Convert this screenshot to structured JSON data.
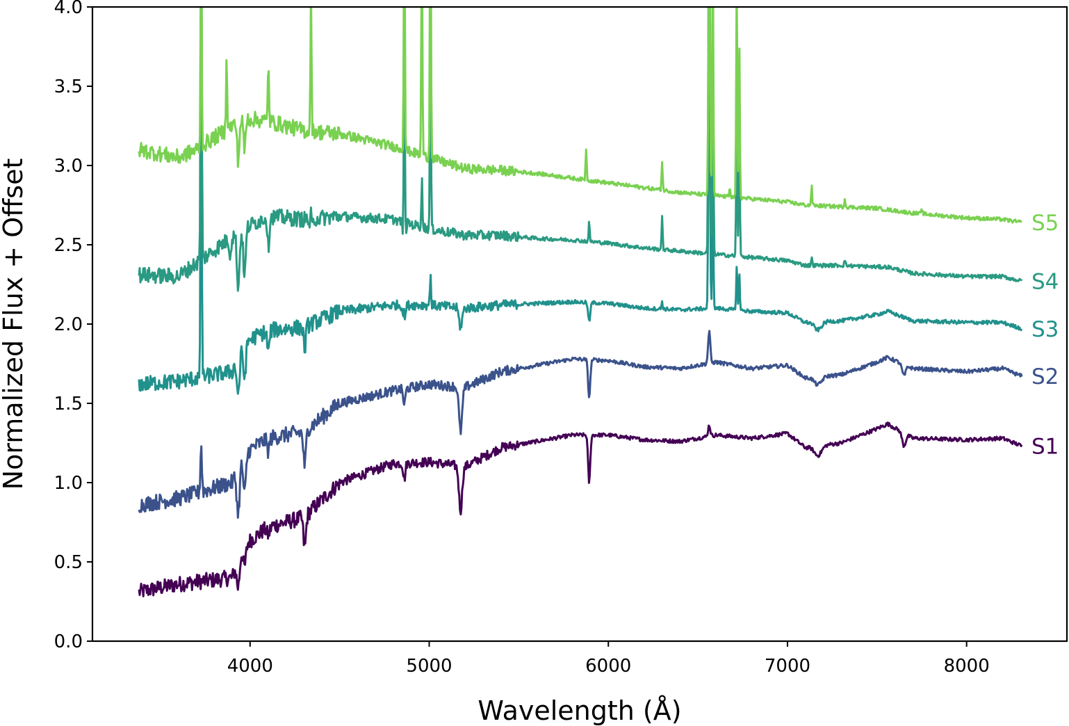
{
  "chart_data": {
    "type": "line",
    "title": "",
    "xlabel": "Wavelength (Å)",
    "ylabel": "Normalized Flux + Offset",
    "xlim": [
      3120,
      8560
    ],
    "ylim": [
      0.0,
      4.0
    ],
    "xticks": [
      4000,
      5000,
      6000,
      7000,
      8000
    ],
    "yticks": [
      0.0,
      0.5,
      1.0,
      1.5,
      2.0,
      2.5,
      3.0,
      3.5,
      4.0
    ],
    "xtick_labels": [
      "4000",
      "5000",
      "6000",
      "7000",
      "8000"
    ],
    "ytick_labels": [
      "0.0",
      "0.5",
      "1.0",
      "1.5",
      "2.0",
      "2.5",
      "3.0",
      "3.5",
      "4.0"
    ],
    "grid": false,
    "legend": "inline labels at right end of each series",
    "series": [
      {
        "name": "S1",
        "label": "S1",
        "color": "#440154",
        "continuum": [
          [
            3380,
            0.31
          ],
          [
            3600,
            0.36
          ],
          [
            3900,
            0.4
          ],
          [
            3960,
            0.6
          ],
          [
            4100,
            0.72
          ],
          [
            4300,
            0.78
          ],
          [
            4500,
            1.0
          ],
          [
            4800,
            1.12
          ],
          [
            5000,
            1.13
          ],
          [
            5200,
            1.1
          ],
          [
            5400,
            1.22
          ],
          [
            5600,
            1.26
          ],
          [
            5800,
            1.3
          ],
          [
            6000,
            1.3
          ],
          [
            6200,
            1.27
          ],
          [
            6400,
            1.26
          ],
          [
            6600,
            1.3
          ],
          [
            6800,
            1.28
          ],
          [
            7000,
            1.31
          ],
          [
            7100,
            1.22
          ],
          [
            7300,
            1.25
          ],
          [
            7500,
            1.34
          ],
          [
            7560,
            1.37
          ],
          [
            7700,
            1.28
          ],
          [
            8000,
            1.27
          ],
          [
            8200,
            1.28
          ],
          [
            8310,
            1.23
          ]
        ],
        "features": [
          [
            3934,
            -0.17,
            8
          ],
          [
            3969,
            -0.14,
            8
          ],
          [
            4102,
            -0.05,
            8
          ],
          [
            4305,
            -0.2,
            7
          ],
          [
            4861,
            -0.1,
            6
          ],
          [
            5175,
            -0.28,
            9
          ],
          [
            5893,
            -0.3,
            6
          ],
          [
            6563,
            0.07,
            6
          ],
          [
            7170,
            -0.06,
            20
          ],
          [
            7650,
            -0.08,
            10
          ]
        ]
      },
      {
        "name": "S2",
        "label": "S2",
        "color": "#3b528b",
        "continuum": [
          [
            3380,
            0.86
          ],
          [
            3600,
            0.9
          ],
          [
            3900,
            1.0
          ],
          [
            3960,
            1.18
          ],
          [
            4100,
            1.28
          ],
          [
            4300,
            1.32
          ],
          [
            4500,
            1.5
          ],
          [
            4800,
            1.58
          ],
          [
            5000,
            1.62
          ],
          [
            5200,
            1.6
          ],
          [
            5400,
            1.7
          ],
          [
            5600,
            1.74
          ],
          [
            5800,
            1.78
          ],
          [
            6000,
            1.77
          ],
          [
            6200,
            1.73
          ],
          [
            6400,
            1.72
          ],
          [
            6600,
            1.76
          ],
          [
            6800,
            1.72
          ],
          [
            7000,
            1.74
          ],
          [
            7100,
            1.66
          ],
          [
            7300,
            1.68
          ],
          [
            7500,
            1.76
          ],
          [
            7560,
            1.79
          ],
          [
            7700,
            1.72
          ],
          [
            8000,
            1.7
          ],
          [
            8200,
            1.72
          ],
          [
            8310,
            1.67
          ]
        ],
        "features": [
          [
            3727,
            0.3,
            4
          ],
          [
            3934,
            -0.3,
            8
          ],
          [
            3969,
            -0.26,
            8
          ],
          [
            4102,
            -0.08,
            7
          ],
          [
            4305,
            -0.22,
            7
          ],
          [
            4861,
            -0.1,
            6
          ],
          [
            5175,
            -0.28,
            9
          ],
          [
            5893,
            -0.24,
            6
          ],
          [
            6563,
            0.2,
            6
          ],
          [
            7170,
            -0.05,
            20
          ],
          [
            7650,
            -0.07,
            10
          ]
        ]
      },
      {
        "name": "S3",
        "label": "S3",
        "color": "#21918c",
        "continuum": [
          [
            3380,
            1.62
          ],
          [
            3600,
            1.64
          ],
          [
            3900,
            1.7
          ],
          [
            3960,
            1.88
          ],
          [
            4100,
            1.96
          ],
          [
            4300,
            1.98
          ],
          [
            4500,
            2.08
          ],
          [
            4800,
            2.12
          ],
          [
            5000,
            2.12
          ],
          [
            5200,
            2.1
          ],
          [
            5400,
            2.12
          ],
          [
            5600,
            2.13
          ],
          [
            5800,
            2.14
          ],
          [
            6000,
            2.13
          ],
          [
            6200,
            2.1
          ],
          [
            6400,
            2.09
          ],
          [
            6600,
            2.1
          ],
          [
            6800,
            2.08
          ],
          [
            7000,
            2.07
          ],
          [
            7100,
            2.01
          ],
          [
            7300,
            2.02
          ],
          [
            7500,
            2.06
          ],
          [
            7560,
            2.08
          ],
          [
            7700,
            2.02
          ],
          [
            8000,
            2.01
          ],
          [
            8200,
            2.01
          ],
          [
            8310,
            1.97
          ]
        ],
        "features": [
          [
            3727,
            2.4,
            3
          ],
          [
            3934,
            -0.24,
            8
          ],
          [
            3969,
            -0.22,
            8
          ],
          [
            4102,
            -0.14,
            6
          ],
          [
            4305,
            -0.14,
            6
          ],
          [
            4861,
            0.05,
            3
          ],
          [
            4861,
            -0.1,
            7
          ],
          [
            5007,
            0.2,
            3
          ],
          [
            5175,
            -0.12,
            9
          ],
          [
            5893,
            -0.12,
            6
          ],
          [
            6300,
            0.05,
            3
          ],
          [
            6563,
            2.0,
            4
          ],
          [
            6583,
            0.9,
            3
          ],
          [
            6717,
            0.3,
            3
          ],
          [
            6731,
            0.25,
            3
          ],
          [
            7170,
            -0.05,
            20
          ]
        ]
      },
      {
        "name": "S4",
        "label": "S4",
        "color": "#2a9a82",
        "continuum": [
          [
            3380,
            2.31
          ],
          [
            3600,
            2.3
          ],
          [
            3900,
            2.55
          ],
          [
            3960,
            2.6
          ],
          [
            4100,
            2.68
          ],
          [
            4300,
            2.66
          ],
          [
            4500,
            2.68
          ],
          [
            4800,
            2.66
          ],
          [
            5000,
            2.6
          ],
          [
            5200,
            2.56
          ],
          [
            5400,
            2.56
          ],
          [
            5600,
            2.54
          ],
          [
            5800,
            2.53
          ],
          [
            6000,
            2.51
          ],
          [
            6200,
            2.48
          ],
          [
            6400,
            2.46
          ],
          [
            6600,
            2.44
          ],
          [
            6800,
            2.42
          ],
          [
            7000,
            2.4
          ],
          [
            7100,
            2.37
          ],
          [
            7300,
            2.37
          ],
          [
            7500,
            2.36
          ],
          [
            7560,
            2.36
          ],
          [
            7700,
            2.32
          ],
          [
            8000,
            2.3
          ],
          [
            8200,
            2.3
          ],
          [
            8310,
            2.27
          ]
        ],
        "features": [
          [
            3727,
            2.6,
            3
          ],
          [
            3889,
            -0.1,
            5
          ],
          [
            3934,
            -0.35,
            7
          ],
          [
            3969,
            -0.3,
            7
          ],
          [
            4102,
            -0.2,
            5
          ],
          [
            4340,
            0.2,
            3
          ],
          [
            4340,
            -0.15,
            6
          ],
          [
            4861,
            1.3,
            3
          ],
          [
            4861,
            -0.2,
            6
          ],
          [
            4959,
            0.3,
            3
          ],
          [
            5007,
            1.2,
            3
          ],
          [
            5893,
            0.12,
            3
          ],
          [
            6300,
            0.2,
            3
          ],
          [
            6563,
            2.6,
            4
          ],
          [
            6583,
            1.6,
            3
          ],
          [
            6717,
            1.0,
            3
          ],
          [
            6731,
            0.9,
            3
          ],
          [
            7135,
            0.05,
            3
          ],
          [
            7320,
            0.04,
            3
          ]
        ]
      },
      {
        "name": "S5",
        "label": "S5",
        "color": "#7ad151",
        "continuum": [
          [
            3380,
            3.1
          ],
          [
            3600,
            3.05
          ],
          [
            3700,
            3.1
          ],
          [
            3900,
            3.25
          ],
          [
            3960,
            3.3
          ],
          [
            4100,
            3.28
          ],
          [
            4300,
            3.22
          ],
          [
            4500,
            3.2
          ],
          [
            4800,
            3.12
          ],
          [
            5000,
            3.05
          ],
          [
            5200,
            2.98
          ],
          [
            5400,
            2.97
          ],
          [
            5600,
            2.95
          ],
          [
            5800,
            2.92
          ],
          [
            6000,
            2.89
          ],
          [
            6200,
            2.86
          ],
          [
            6400,
            2.83
          ],
          [
            6600,
            2.81
          ],
          [
            6800,
            2.79
          ],
          [
            7000,
            2.77
          ],
          [
            7100,
            2.75
          ],
          [
            7300,
            2.74
          ],
          [
            7500,
            2.73
          ],
          [
            7700,
            2.7
          ],
          [
            8000,
            2.67
          ],
          [
            8200,
            2.66
          ],
          [
            8310,
            2.64
          ]
        ],
        "features": [
          [
            3727,
            1.4,
            3
          ],
          [
            3869,
            0.5,
            3
          ],
          [
            3934,
            -0.25,
            6
          ],
          [
            3969,
            -0.2,
            6
          ],
          [
            4102,
            0.4,
            3
          ],
          [
            4340,
            0.9,
            3
          ],
          [
            4861,
            1.6,
            3
          ],
          [
            4959,
            1.4,
            3
          ],
          [
            5007,
            1.8,
            3
          ],
          [
            5876,
            0.2,
            3
          ],
          [
            6300,
            0.18,
            3
          ],
          [
            6563,
            1.9,
            4
          ],
          [
            6583,
            1.6,
            3
          ],
          [
            6678,
            0.07,
            3
          ],
          [
            6717,
            1.4,
            3
          ],
          [
            6731,
            1.0,
            3
          ],
          [
            7135,
            0.12,
            3
          ],
          [
            7320,
            0.05,
            3
          ],
          [
            7751,
            0.03,
            3
          ]
        ]
      }
    ]
  }
}
